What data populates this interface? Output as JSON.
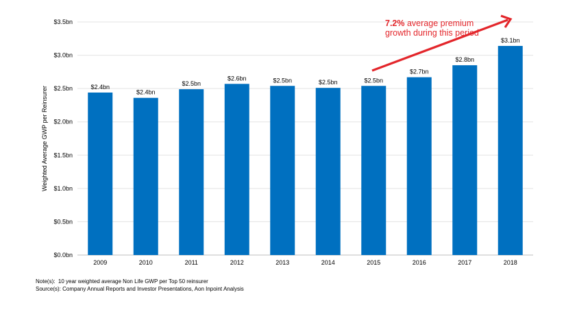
{
  "chart_data": {
    "type": "bar",
    "title": "",
    "xlabel": "",
    "ylabel": "Weighted Average GWP per Reinsurer",
    "ylim": [
      0,
      3.5
    ],
    "yticks": [
      0,
      0.5,
      1.0,
      1.5,
      2.0,
      2.5,
      3.0,
      3.5
    ],
    "ytick_labels": [
      "$0.0bn",
      "$0.5bn",
      "$1.0bn",
      "$1.5bn",
      "$2.0bn",
      "$2.5bn",
      "$3.0bn",
      "$3.5bn"
    ],
    "categories": [
      "2009",
      "2010",
      "2011",
      "2012",
      "2013",
      "2014",
      "2015",
      "2016",
      "2017",
      "2018"
    ],
    "values": [
      2.44,
      2.36,
      2.49,
      2.57,
      2.54,
      2.51,
      2.54,
      2.67,
      2.85,
      3.14
    ],
    "data_labels": [
      "$2.4bn",
      "$2.4bn",
      "$2.5bn",
      "$2.6bn",
      "$2.5bn",
      "$2.5bn",
      "$2.5bn",
      "$2.7bn",
      "$2.8bn",
      "$3.1bn"
    ],
    "grid": true,
    "bar_color": "#0070c0",
    "annotation": {
      "highlight": "7.2%",
      "text": " average premium growth during this period",
      "color": "#e3262b",
      "from_category": "2015",
      "to_category": "2018"
    }
  },
  "notes": {
    "note": "Note(s):  10 year weighted average Non Life GWP per Top 50 reinsurer",
    "source": "Source(s): Company Annual Reports and Investor Presentations, Aon Inpoint Analysis"
  }
}
